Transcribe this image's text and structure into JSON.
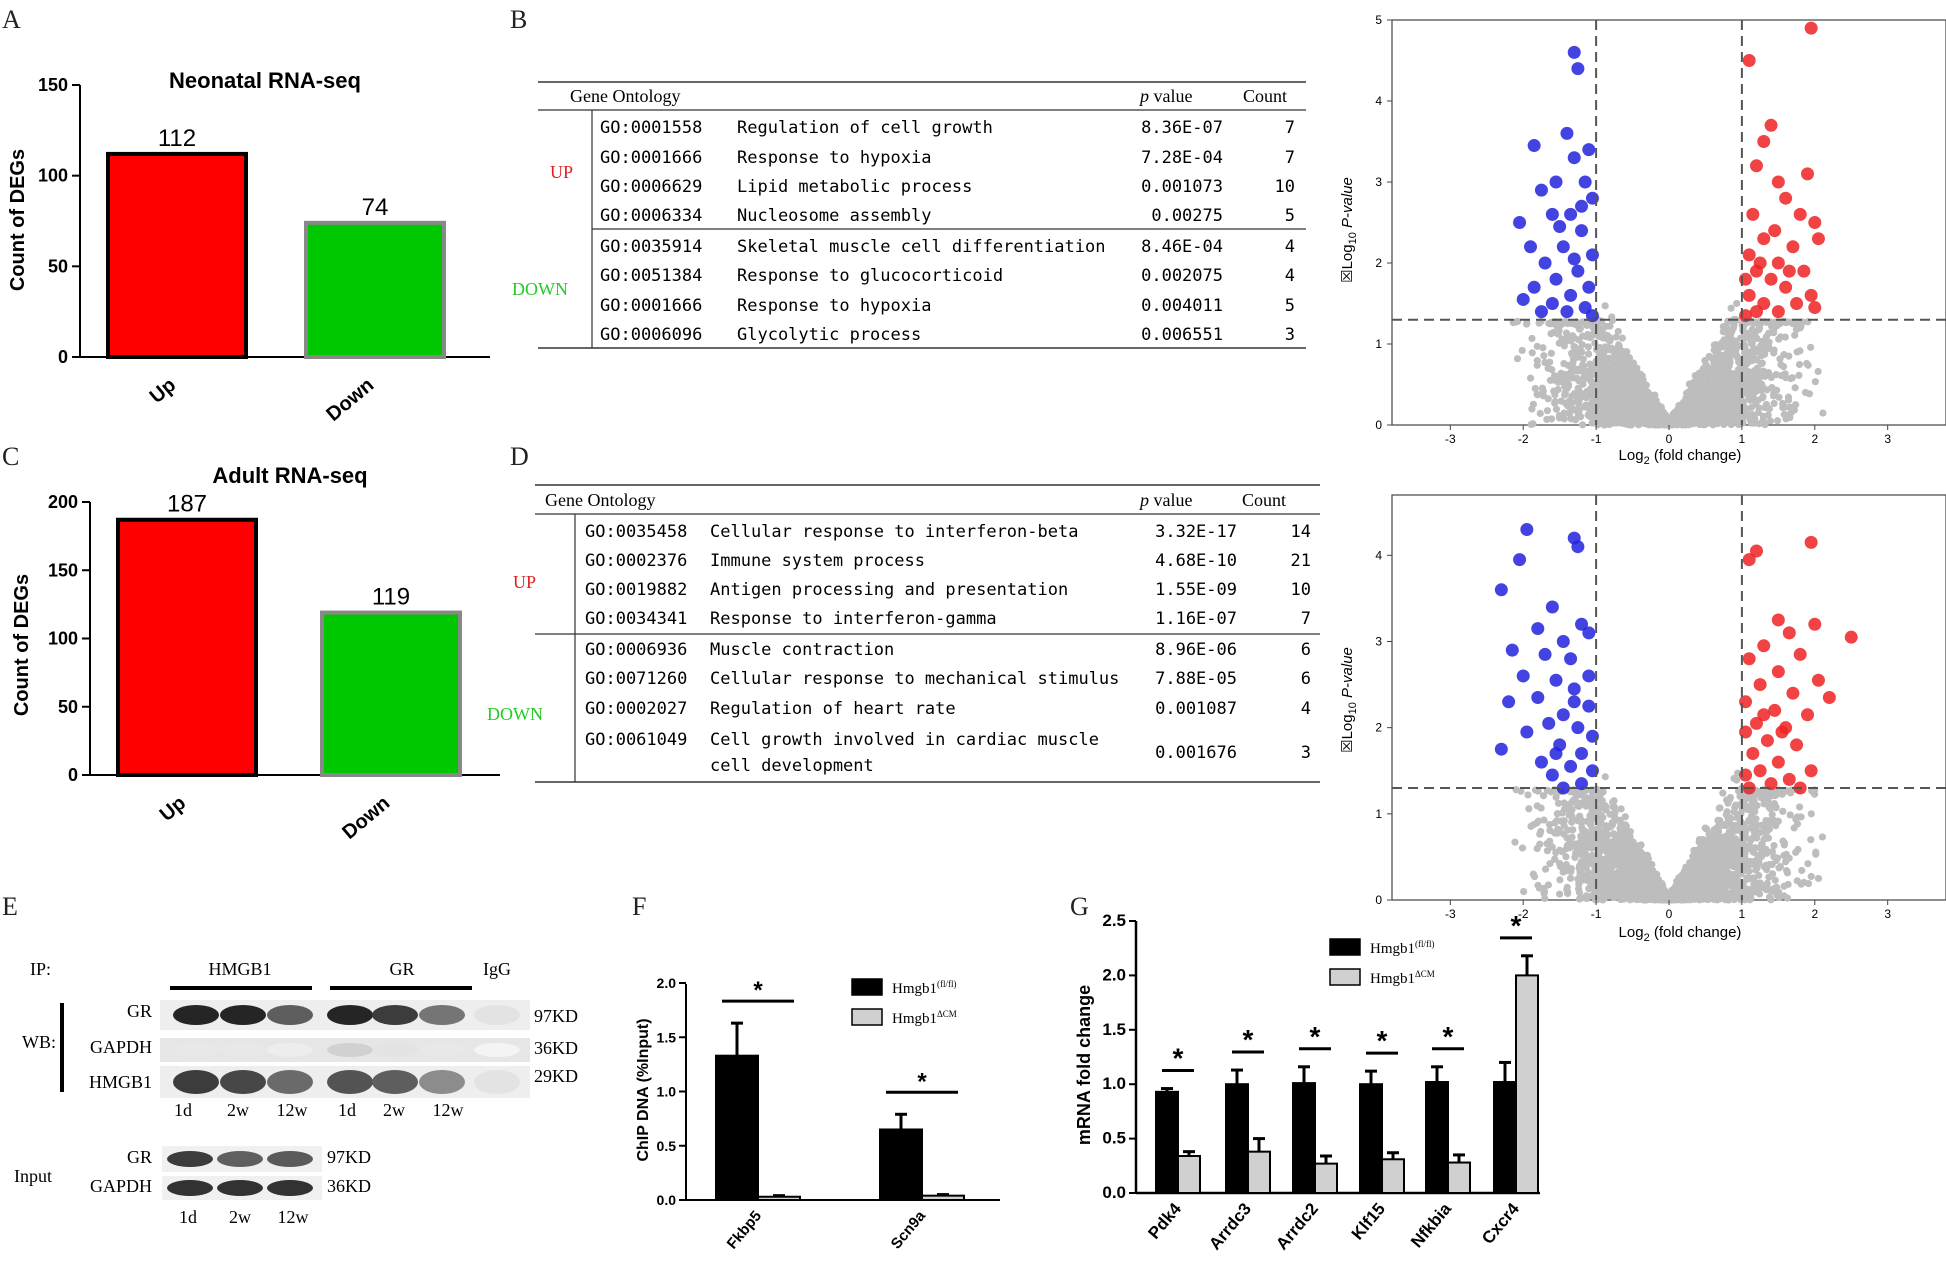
{
  "panels": {
    "A": {
      "letter": "A",
      "chart_data": {
        "type": "bar",
        "title": "Neonatal RNA-seq",
        "ylabel": "Count of DEGs",
        "categories": [
          "Up",
          "Down"
        ],
        "values": [
          112,
          74
        ],
        "value_labels": [
          "112",
          "74"
        ],
        "colors": [
          "#ff0000",
          "#00c800"
        ],
        "ylim": [
          0,
          150
        ],
        "yticks": [
          "0",
          "50",
          "100",
          "150"
        ]
      }
    },
    "B": {
      "letter": "B",
      "header": {
        "go": "Gene Ontology",
        "p": "p",
        "p_rest": " value",
        "count": "Count"
      },
      "groups": [
        {
          "label": "UP",
          "color": "#e02020",
          "rows": [
            {
              "id": "GO:0001558",
              "term": "Regulation of cell growth",
              "p": "8.36E-07",
              "count": "7"
            },
            {
              "id": "GO:0001666",
              "term": "Response to hypoxia",
              "p": "7.28E-04",
              "count": "7"
            },
            {
              "id": "GO:0006629",
              "term": "Lipid metabolic process",
              "p": "0.001073",
              "count": "10"
            },
            {
              "id": "GO:0006334",
              "term": "Nucleosome assembly",
              "p": "0.00275",
              "count": "5"
            }
          ]
        },
        {
          "label": "DOWN",
          "color": "#22cc22",
          "rows": [
            {
              "id": "GO:0035914",
              "term": "Skeletal muscle cell differentiation",
              "p": "8.46E-04",
              "count": "4"
            },
            {
              "id": "GO:0051384",
              "term": "Response to glucocorticoid",
              "p": "0.002075",
              "count": "4"
            },
            {
              "id": "GO:0001666",
              "term": "Response to hypoxia",
              "p": "0.004011",
              "count": "5"
            },
            {
              "id": "GO:0006096",
              "term": "Glycolytic process",
              "p": "0.006551",
              "count": "3"
            }
          ]
        }
      ]
    },
    "C": {
      "letter": "C",
      "chart_data": {
        "type": "bar",
        "title": "Adult RNA-seq",
        "ylabel": "Count of DEGs",
        "categories": [
          "Up",
          "Down"
        ],
        "values": [
          187,
          119
        ],
        "value_labels": [
          "187",
          "119"
        ],
        "colors": [
          "#ff0000",
          "#00c800"
        ],
        "ylim": [
          0,
          200
        ],
        "yticks": [
          "0",
          "50",
          "100",
          "150",
          "200"
        ]
      }
    },
    "D": {
      "letter": "D",
      "header": {
        "go": "Gene Ontology",
        "p": "p",
        "p_rest": " value",
        "count": "Count"
      },
      "groups": [
        {
          "label": "UP",
          "color": "#e02020",
          "rows": [
            {
              "id": "GO:0035458",
              "term": "Cellular response to interferon-beta",
              "p": "3.32E-17",
              "count": "14"
            },
            {
              "id": "GO:0002376",
              "term": "Immune system process",
              "p": "4.68E-10",
              "count": "21"
            },
            {
              "id": "GO:0019882",
              "term": "Antigen processing and presentation",
              "p": "1.55E-09",
              "count": "10"
            },
            {
              "id": "GO:0034341",
              "term": "Response to interferon-gamma",
              "p": "1.16E-07",
              "count": "7"
            }
          ]
        },
        {
          "label": "DOWN",
          "color": "#22cc22",
          "rows": [
            {
              "id": "GO:0006936",
              "term": "Muscle contraction",
              "p": "8.96E-06",
              "count": "6"
            },
            {
              "id": "GO:0071260",
              "term": "Cellular response to mechanical stimulus",
              "p": "7.88E-05",
              "count": "6"
            },
            {
              "id": "GO:0002027",
              "term": "Regulation of heart rate",
              "p": "0.001087",
              "count": "4"
            },
            {
              "id": "GO:0061049",
              "term": "Cell growth involved in cardiac muscle",
              "term2": "cell development",
              "p": "0.001676",
              "count": "3"
            }
          ]
        }
      ]
    },
    "volcano_top": {
      "chart_data": {
        "type": "scatter",
        "xlabel_main": "Log",
        "xlabel_sub": "2",
        "xlabel_rest": " (fold change)",
        "ylabel_box": "☒",
        "ylabel_main": "Log",
        "ylabel_sub": "10",
        "ylabel_italic": " P-value",
        "xlim": [
          -3.8,
          3.8
        ],
        "ylim": [
          0,
          5
        ],
        "xticks": [
          {
            "v": -3,
            "t": "-3"
          },
          {
            "v": -2,
            "t": "-2"
          },
          {
            "v": -1,
            "t": "-1"
          },
          {
            "v": 0,
            "t": "0"
          },
          {
            "v": 1,
            "t": "1"
          },
          {
            "v": 2,
            "t": "2"
          },
          {
            "v": 3,
            "t": "3"
          }
        ],
        "yticks": [
          {
            "v": 0,
            "t": "0"
          },
          {
            "v": 1,
            "t": "1"
          },
          {
            "v": 2,
            "t": "2"
          },
          {
            "v": 3,
            "t": "3"
          },
          {
            "v": 4,
            "t": "4"
          },
          {
            "v": 5,
            "t": "5"
          }
        ],
        "vlines": [
          -1,
          1
        ],
        "hline": 1.3,
        "colors": {
          "up": "#ee2222",
          "down": "#2222dd",
          "ns": "#bdbdbd"
        },
        "up_points": [
          [
            1.95,
            4.9
          ],
          [
            1.1,
            4.5
          ],
          [
            1.4,
            3.7
          ],
          [
            1.3,
            3.5
          ],
          [
            1.2,
            3.2
          ],
          [
            1.5,
            3.0
          ],
          [
            1.9,
            3.1
          ],
          [
            1.6,
            2.8
          ],
          [
            1.8,
            2.6
          ],
          [
            1.15,
            2.6
          ],
          [
            2.0,
            2.5
          ],
          [
            1.3,
            2.3
          ],
          [
            1.7,
            2.2
          ],
          [
            2.05,
            2.3
          ],
          [
            1.1,
            2.1
          ],
          [
            1.5,
            2.0
          ],
          [
            1.85,
            1.9
          ],
          [
            1.2,
            1.9
          ],
          [
            1.05,
            1.8
          ],
          [
            1.4,
            1.8
          ],
          [
            1.6,
            1.7
          ],
          [
            1.95,
            1.6
          ],
          [
            1.1,
            1.6
          ],
          [
            1.3,
            1.5
          ],
          [
            1.75,
            1.5
          ],
          [
            2.0,
            1.45
          ],
          [
            1.2,
            1.4
          ],
          [
            1.5,
            1.4
          ],
          [
            1.05,
            1.35
          ],
          [
            1.65,
            1.9
          ],
          [
            1.45,
            2.4
          ],
          [
            1.25,
            2.0
          ]
        ],
        "down_points": [
          [
            -1.3,
            4.6
          ],
          [
            -1.25,
            4.4
          ],
          [
            -1.4,
            3.6
          ],
          [
            -1.1,
            3.4
          ],
          [
            -1.85,
            3.45
          ],
          [
            -1.3,
            3.3
          ],
          [
            -1.55,
            3.0
          ],
          [
            -1.15,
            3.0
          ],
          [
            -1.75,
            2.9
          ],
          [
            -1.05,
            2.8
          ],
          [
            -1.6,
            2.6
          ],
          [
            -1.35,
            2.6
          ],
          [
            -2.05,
            2.5
          ],
          [
            -1.2,
            2.4
          ],
          [
            -1.9,
            2.2
          ],
          [
            -1.45,
            2.2
          ],
          [
            -1.05,
            2.1
          ],
          [
            -1.7,
            2.0
          ],
          [
            -1.25,
            1.9
          ],
          [
            -1.55,
            1.8
          ],
          [
            -1.1,
            1.7
          ],
          [
            -1.85,
            1.7
          ],
          [
            -1.35,
            1.6
          ],
          [
            -2.0,
            1.55
          ],
          [
            -1.6,
            1.5
          ],
          [
            -1.15,
            1.45
          ],
          [
            -1.4,
            1.4
          ],
          [
            -1.05,
            1.35
          ],
          [
            -1.75,
            1.4
          ],
          [
            -1.2,
            2.7
          ],
          [
            -1.5,
            2.45
          ],
          [
            -1.3,
            2.05
          ]
        ]
      }
    },
    "volcano_bottom": {
      "chart_data": {
        "type": "scatter",
        "xlabel_main": "Log",
        "xlabel_sub": "2",
        "xlabel_rest": " (fold change)",
        "ylabel_box": "☒",
        "ylabel_main": "Log",
        "ylabel_sub": "10",
        "ylabel_italic": " P-value",
        "xlim": [
          -3.8,
          3.8
        ],
        "ylim": [
          0,
          4.7
        ],
        "xticks": [
          {
            "v": -3,
            "t": "-3"
          },
          {
            "v": -2,
            "t": "-2"
          },
          {
            "v": -1,
            "t": "-1"
          },
          {
            "v": 0,
            "t": "0"
          },
          {
            "v": 1,
            "t": "1"
          },
          {
            "v": 2,
            "t": "2"
          },
          {
            "v": 3,
            "t": "3"
          }
        ],
        "yticks": [
          {
            "v": 0,
            "t": "0"
          },
          {
            "v": 1,
            "t": "1"
          },
          {
            "v": 2,
            "t": "2"
          },
          {
            "v": 3,
            "t": "3"
          },
          {
            "v": 4,
            "t": "4"
          }
        ],
        "vlines": [
          -1,
          1
        ],
        "hline": 1.3,
        "colors": {
          "up": "#ee2222",
          "down": "#2222dd",
          "ns": "#bdbdbd"
        },
        "up_points": [
          [
            1.95,
            4.15
          ],
          [
            1.2,
            4.05
          ],
          [
            1.1,
            3.95
          ],
          [
            1.5,
            3.25
          ],
          [
            2.0,
            3.2
          ],
          [
            2.5,
            3.05
          ],
          [
            1.65,
            3.1
          ],
          [
            1.3,
            2.95
          ],
          [
            1.8,
            2.85
          ],
          [
            1.1,
            2.8
          ],
          [
            1.5,
            2.65
          ],
          [
            2.05,
            2.55
          ],
          [
            1.25,
            2.5
          ],
          [
            1.7,
            2.4
          ],
          [
            2.2,
            2.35
          ],
          [
            1.05,
            2.3
          ],
          [
            1.45,
            2.2
          ],
          [
            1.9,
            2.15
          ],
          [
            1.2,
            2.05
          ],
          [
            1.6,
            2.0
          ],
          [
            1.05,
            1.95
          ],
          [
            1.35,
            1.85
          ],
          [
            1.75,
            1.8
          ],
          [
            1.15,
            1.7
          ],
          [
            1.5,
            1.6
          ],
          [
            1.95,
            1.5
          ],
          [
            1.25,
            1.5
          ],
          [
            1.05,
            1.45
          ],
          [
            1.65,
            1.4
          ],
          [
            1.4,
            1.35
          ],
          [
            1.1,
            1.3
          ],
          [
            1.8,
            1.3
          ],
          [
            1.3,
            2.15
          ],
          [
            1.55,
            1.95
          ]
        ],
        "down_points": [
          [
            -1.95,
            4.3
          ],
          [
            -1.3,
            4.2
          ],
          [
            -1.25,
            4.1
          ],
          [
            -2.05,
            3.95
          ],
          [
            -2.3,
            3.6
          ],
          [
            -1.6,
            3.4
          ],
          [
            -1.2,
            3.2
          ],
          [
            -1.8,
            3.15
          ],
          [
            -1.1,
            3.1
          ],
          [
            -1.45,
            3.0
          ],
          [
            -2.15,
            2.9
          ],
          [
            -1.7,
            2.85
          ],
          [
            -1.35,
            2.8
          ],
          [
            -1.1,
            2.6
          ],
          [
            -2.0,
            2.6
          ],
          [
            -1.55,
            2.55
          ],
          [
            -1.3,
            2.45
          ],
          [
            -1.8,
            2.35
          ],
          [
            -2.2,
            2.3
          ],
          [
            -1.1,
            2.25
          ],
          [
            -1.45,
            2.15
          ],
          [
            -1.65,
            2.05
          ],
          [
            -1.25,
            2.0
          ],
          [
            -1.95,
            1.95
          ],
          [
            -1.05,
            1.9
          ],
          [
            -1.5,
            1.8
          ],
          [
            -2.3,
            1.75
          ],
          [
            -1.2,
            1.7
          ],
          [
            -1.75,
            1.6
          ],
          [
            -1.35,
            1.55
          ],
          [
            -1.05,
            1.5
          ],
          [
            -1.6,
            1.45
          ],
          [
            -1.2,
            1.35
          ],
          [
            -1.45,
            1.3
          ],
          [
            -1.3,
            2.3
          ],
          [
            -1.55,
            1.7
          ]
        ]
      }
    },
    "E": {
      "letter": "E",
      "ip_label": "IP:",
      "ip_groups": [
        "HMGB1",
        "GR",
        "IgG"
      ],
      "wb_label": "WB:",
      "wb_rows": [
        {
          "protein": "GR",
          "size": "97KD"
        },
        {
          "protein": "GAPDH",
          "size": "36KD"
        },
        {
          "protein": "HMGB1",
          "size": "29KD"
        }
      ],
      "lanes_ip": [
        "1d",
        "2w",
        "12w",
        "1d",
        "2w",
        "12w"
      ],
      "input_label": "Input",
      "input_rows": [
        {
          "protein": "GR",
          "size": "97KD"
        },
        {
          "protein": "GAPDH",
          "size": "36KD"
        }
      ],
      "lanes_input": [
        "1d",
        "2w",
        "12w"
      ]
    },
    "F": {
      "letter": "F",
      "chart_data": {
        "type": "bar",
        "ylabel": "ChIP DNA (%Input)",
        "categories": [
          "Fkbp5",
          "Scn9a"
        ],
        "series": [
          {
            "name": "Hmgb1",
            "name_sup": "(fl/fl)",
            "color": "#000000",
            "values": [
              1.33,
              0.65
            ],
            "errors": [
              0.3,
              0.14
            ]
          },
          {
            "name": "Hmgb1",
            "name_sup": "ΔCM",
            "color": "#d0d0d0",
            "values": [
              0.03,
              0.04
            ],
            "errors": [
              0.01,
              0.01
            ]
          }
        ],
        "ylim": [
          0,
          2.0
        ],
        "yticks": [
          "0.0",
          "0.5",
          "1.0",
          "1.5",
          "2.0"
        ],
        "significance": "*"
      }
    },
    "G": {
      "letter": "G",
      "chart_data": {
        "type": "bar",
        "ylabel": "mRNA fold change",
        "categories": [
          "Pdk4",
          "Arrdc3",
          "Arrdc2",
          "Klf15",
          "Nfkbia",
          "Cxcr4"
        ],
        "series": [
          {
            "name": "Hmgb1",
            "name_sup": "(fl/fl)",
            "color": "#000000",
            "values": [
              0.93,
              1.0,
              1.01,
              1.0,
              1.02,
              1.02
            ],
            "errors": [
              0.03,
              0.13,
              0.15,
              0.12,
              0.14,
              0.18
            ]
          },
          {
            "name": "Hmgb1",
            "name_sup": "ΔCM",
            "color": "#d0d0d0",
            "values": [
              0.34,
              0.38,
              0.27,
              0.31,
              0.28,
              2.0
            ],
            "errors": [
              0.04,
              0.12,
              0.07,
              0.06,
              0.07,
              0.18
            ]
          }
        ],
        "ylim": [
          0,
          2.5
        ],
        "yticks": [
          "0.0",
          "0.5",
          "1.0",
          "1.5",
          "2.0",
          "2.5"
        ],
        "significance": "*"
      }
    }
  }
}
